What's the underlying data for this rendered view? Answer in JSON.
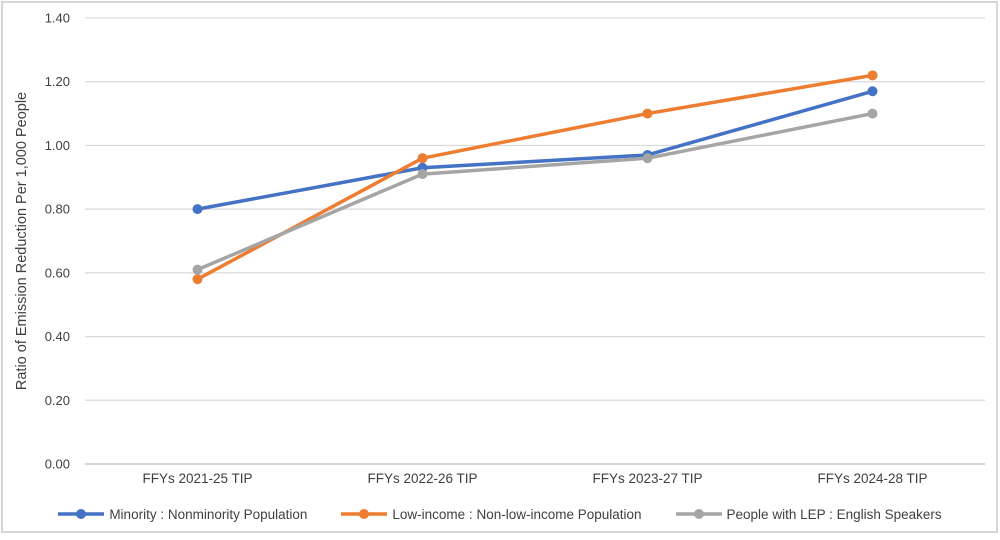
{
  "chart_data": {
    "type": "line",
    "title": "",
    "xlabel": "",
    "ylabel": "Ratio of Emission Reduction Per 1,000 People",
    "categories": [
      "FFYs 2021-25 TIP",
      "FFYs 2022-26 TIP",
      "FFYs 2023-27 TIP",
      "FFYs 2024-28 TIP"
    ],
    "series": [
      {
        "name": "Minority : Nonminority Population",
        "color": "#4472C4",
        "values": [
          0.8,
          0.93,
          0.97,
          1.17
        ]
      },
      {
        "name": "Low-income : Non-low-income Population",
        "color": "#ED7D31",
        "values": [
          0.58,
          0.96,
          1.1,
          1.22
        ]
      },
      {
        "name": "People with LEP : English Speakers",
        "color": "#A5A5A5",
        "values": [
          0.61,
          0.91,
          0.96,
          1.1
        ]
      }
    ],
    "ylim": [
      0.0,
      1.4
    ],
    "ytick_step": 0.2,
    "ytick_labels": [
      "0.00",
      "0.20",
      "0.40",
      "0.60",
      "0.80",
      "1.00",
      "1.20",
      "1.40"
    ],
    "grid": true,
    "legend_position": "bottom",
    "marker_style": "circle",
    "colors": {
      "gridline": "#d9d9d9",
      "axis_line": "#c0c0c0",
      "text": "#404040",
      "frame_border": "#d6d6d6",
      "background": "#ffffff"
    }
  }
}
